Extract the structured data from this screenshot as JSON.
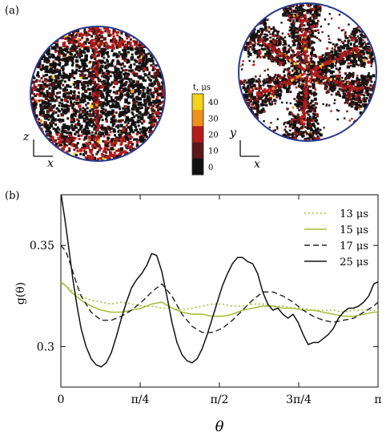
{
  "panel_a": {
    "label": "(a)",
    "left_axes": {
      "vertical": "z",
      "horizontal": "x"
    },
    "right_axes": {
      "vertical": "y",
      "horizontal": "x"
    },
    "colorbar": {
      "title": "t, μs",
      "ticks": [
        "40",
        "30",
        "20",
        "10",
        "0"
      ],
      "colors": [
        "#f2d21b",
        "#f0901c",
        "#b51d1d",
        "#5a1818",
        "#121212"
      ]
    }
  },
  "panel_b": {
    "label": "(b)"
  },
  "chart_data": {
    "type": "line",
    "xlabel": "θ",
    "ylabel": "g(θ)",
    "xlim": [
      0,
      3.14159
    ],
    "ylim": [
      0.28,
      0.375
    ],
    "xticks": [
      {
        "value": 0,
        "label": "0"
      },
      {
        "value": 0.7854,
        "label": "π/4"
      },
      {
        "value": 1.5708,
        "label": "π/2"
      },
      {
        "value": 2.3562,
        "label": "3π/4"
      },
      {
        "value": 3.1416,
        "label": "π"
      }
    ],
    "yticks": [
      {
        "value": 0.3,
        "label": "0.3"
      },
      {
        "value": 0.35,
        "label": "0.35"
      }
    ],
    "legend_position": "top-right",
    "series": [
      {
        "name": "13 μs",
        "color": "#a8bd3a",
        "dash": "2,3",
        "width": 1.6,
        "x": [
          0,
          0.05,
          0.1,
          0.2,
          0.3,
          0.4,
          0.5,
          0.6,
          0.7,
          0.8,
          0.9,
          1.0,
          1.1,
          1.2,
          1.3,
          1.4,
          1.5,
          1.6,
          1.7,
          1.8,
          1.9,
          2.0,
          2.1,
          2.2,
          2.3,
          2.4,
          2.5,
          2.6,
          2.7,
          2.8,
          2.9,
          3.0,
          3.1,
          3.1416
        ],
        "y": [
          0.331,
          0.33,
          0.328,
          0.325,
          0.323,
          0.322,
          0.321,
          0.322,
          0.321,
          0.32,
          0.32,
          0.319,
          0.319,
          0.318,
          0.319,
          0.32,
          0.321,
          0.321,
          0.32,
          0.32,
          0.321,
          0.321,
          0.32,
          0.32,
          0.319,
          0.319,
          0.318,
          0.318,
          0.318,
          0.317,
          0.318,
          0.318,
          0.318,
          0.318
        ]
      },
      {
        "name": "15 μs",
        "color": "#a8bd3a",
        "dash": "",
        "width": 1.6,
        "x": [
          0,
          0.05,
          0.1,
          0.2,
          0.3,
          0.4,
          0.5,
          0.6,
          0.7,
          0.8,
          0.9,
          1.0,
          1.1,
          1.2,
          1.3,
          1.4,
          1.5,
          1.6,
          1.7,
          1.8,
          1.9,
          2.0,
          2.1,
          2.2,
          2.3,
          2.4,
          2.5,
          2.6,
          2.7,
          2.8,
          2.9,
          3.0,
          3.1,
          3.1416
        ],
        "y": [
          0.332,
          0.33,
          0.327,
          0.323,
          0.32,
          0.318,
          0.317,
          0.317,
          0.318,
          0.319,
          0.321,
          0.322,
          0.319,
          0.317,
          0.316,
          0.316,
          0.315,
          0.315,
          0.316,
          0.318,
          0.319,
          0.32,
          0.32,
          0.319,
          0.319,
          0.318,
          0.318,
          0.317,
          0.316,
          0.315,
          0.315,
          0.316,
          0.317,
          0.317
        ]
      },
      {
        "name": "17 μs",
        "color": "#222222",
        "dash": "7,4",
        "width": 1.4,
        "x": [
          0,
          0.05,
          0.1,
          0.15,
          0.2,
          0.3,
          0.4,
          0.5,
          0.6,
          0.7,
          0.8,
          0.9,
          1.0,
          1.1,
          1.2,
          1.3,
          1.4,
          1.5,
          1.6,
          1.7,
          1.8,
          1.9,
          2.0,
          2.1,
          2.2,
          2.3,
          2.4,
          2.5,
          2.6,
          2.7,
          2.8,
          2.9,
          3.0,
          3.1,
          3.1416
        ],
        "y": [
          0.35,
          0.347,
          0.34,
          0.332,
          0.325,
          0.317,
          0.313,
          0.313,
          0.315,
          0.318,
          0.322,
          0.327,
          0.331,
          0.325,
          0.316,
          0.31,
          0.307,
          0.307,
          0.309,
          0.313,
          0.318,
          0.323,
          0.327,
          0.327,
          0.325,
          0.322,
          0.318,
          0.315,
          0.313,
          0.312,
          0.313,
          0.314,
          0.317,
          0.32,
          0.322
        ]
      },
      {
        "name": "25 μs",
        "color": "#111111",
        "dash": "",
        "width": 1.5,
        "x": [
          0,
          0.04,
          0.08,
          0.12,
          0.16,
          0.2,
          0.25,
          0.3,
          0.35,
          0.4,
          0.45,
          0.5,
          0.55,
          0.6,
          0.65,
          0.7,
          0.75,
          0.8,
          0.85,
          0.9,
          0.95,
          1.0,
          1.05,
          1.1,
          1.15,
          1.2,
          1.25,
          1.3,
          1.35,
          1.4,
          1.45,
          1.5,
          1.55,
          1.6,
          1.65,
          1.7,
          1.75,
          1.8,
          1.85,
          1.9,
          1.95,
          2.0,
          2.05,
          2.1,
          2.15,
          2.2,
          2.25,
          2.3,
          2.35,
          2.4,
          2.45,
          2.5,
          2.55,
          2.6,
          2.65,
          2.7,
          2.75,
          2.8,
          2.85,
          2.9,
          2.95,
          3.0,
          3.05,
          3.1,
          3.1416
        ],
        "y": [
          0.376,
          0.363,
          0.348,
          0.333,
          0.32,
          0.309,
          0.3,
          0.294,
          0.291,
          0.29,
          0.292,
          0.297,
          0.305,
          0.314,
          0.322,
          0.329,
          0.333,
          0.336,
          0.34,
          0.346,
          0.345,
          0.337,
          0.325,
          0.312,
          0.302,
          0.296,
          0.293,
          0.292,
          0.294,
          0.299,
          0.306,
          0.314,
          0.322,
          0.33,
          0.336,
          0.341,
          0.344,
          0.344,
          0.342,
          0.341,
          0.336,
          0.327,
          0.321,
          0.318,
          0.319,
          0.316,
          0.314,
          0.316,
          0.312,
          0.306,
          0.301,
          0.302,
          0.302,
          0.304,
          0.306,
          0.309,
          0.314,
          0.317,
          0.319,
          0.319,
          0.32,
          0.322,
          0.325,
          0.331,
          0.332
        ]
      }
    ]
  }
}
